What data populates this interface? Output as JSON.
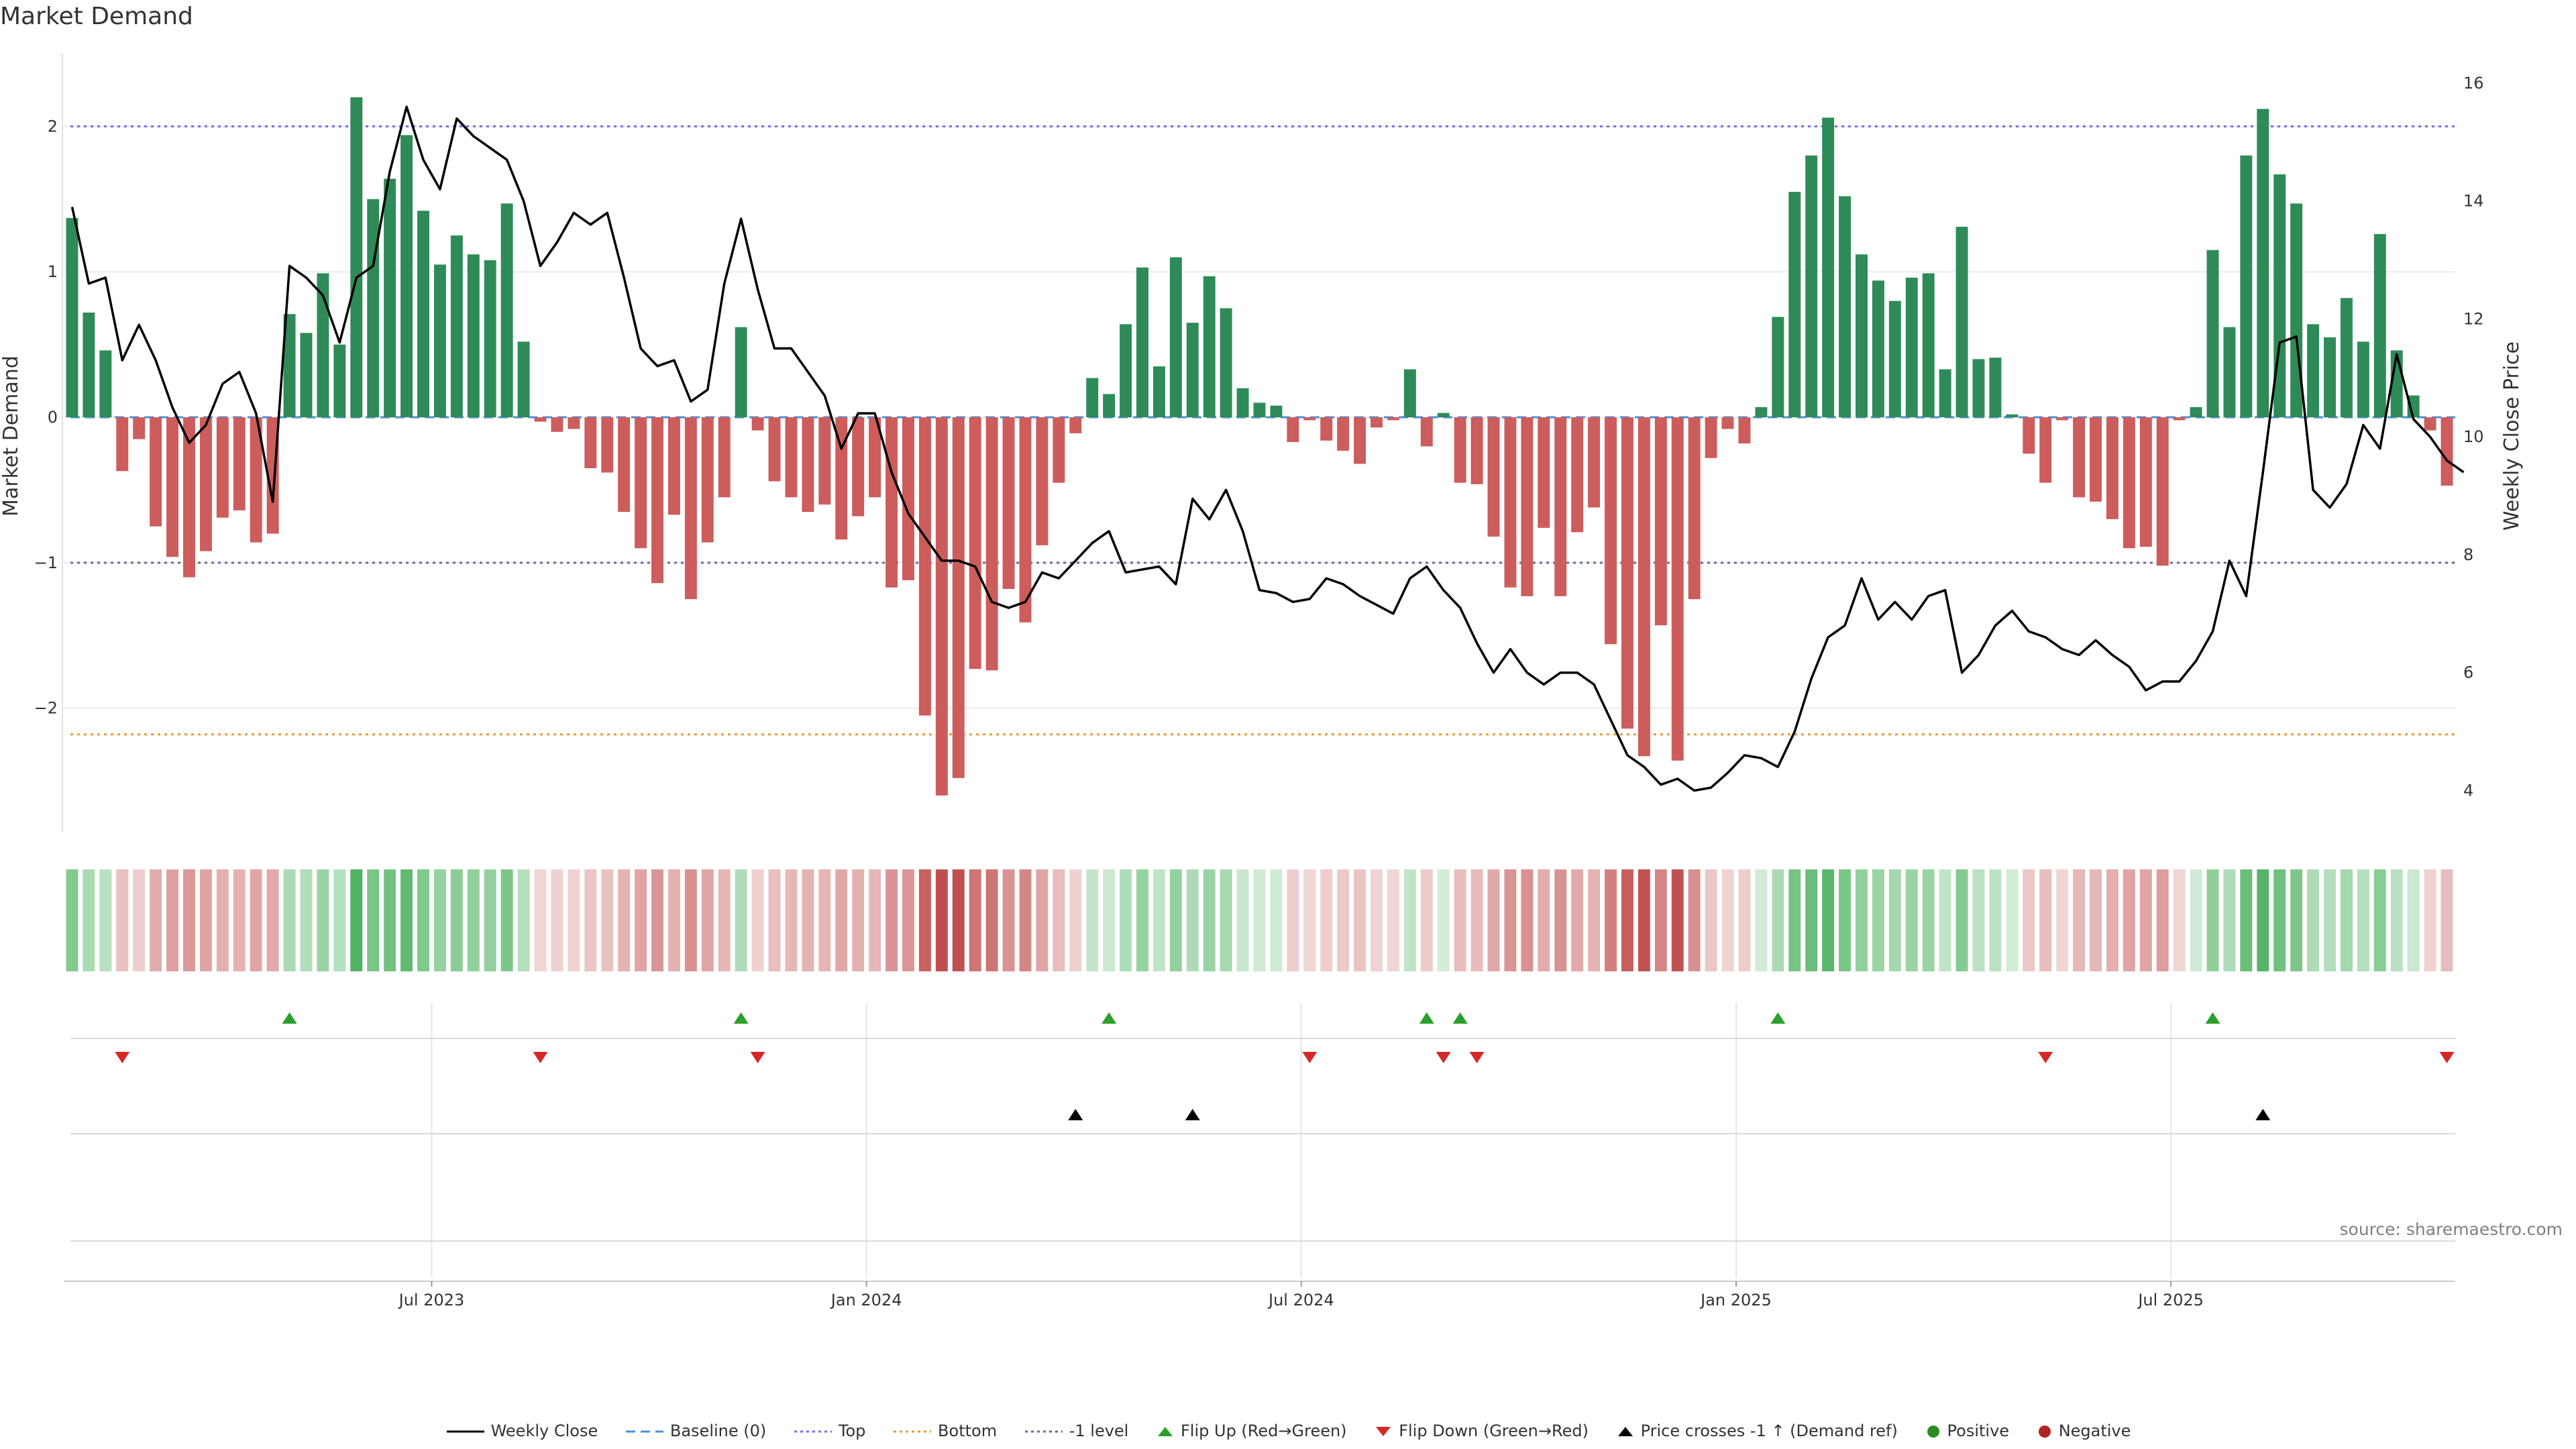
{
  "title": "Market Demand",
  "source": "source: sharemaestro.com",
  "colors": {
    "positive_bar": "#2e8b57",
    "negative_bar": "#cd5c5c",
    "price_line": "#000000",
    "baseline": "#4a90d9",
    "top_line": "#7b68ee",
    "bottom_line": "#e59a3a",
    "minus1_line": "#696992",
    "flip_up": "#2ca02c",
    "flip_down": "#d62728",
    "cross": "#000000",
    "positive_dot": "#2e8b22",
    "negative_dot": "#b22222"
  },
  "chart_data": {
    "type": "bar",
    "ylabel": "Market Demand",
    "y2label": "Weekly Close Price",
    "ylim": [
      -2.85,
      2.5
    ],
    "y2lim": [
      3.3,
      16.5
    ],
    "yticks": [
      "2",
      "1",
      "0",
      "−1",
      "−2"
    ],
    "y2ticks": [
      "16",
      "14",
      "12",
      "10",
      "8",
      "6",
      "4"
    ],
    "reference_lines": {
      "top": 2.0,
      "bottom": -2.18,
      "minus1": -1.0,
      "baseline": 0
    },
    "x_labels": [
      "Jul 2023",
      "Jan 2024",
      "Jul 2024",
      "Jan 2025",
      "Jul 2025"
    ],
    "x_label_weeks": [
      22,
      48,
      74,
      100,
      126
    ],
    "demand": [
      1.37,
      0.72,
      0.46,
      -0.37,
      -0.15,
      -0.75,
      -0.96,
      -1.1,
      -0.92,
      -0.69,
      -0.64,
      -0.86,
      -0.8,
      0.71,
      0.58,
      0.99,
      0.5,
      2.2,
      1.5,
      1.64,
      1.94,
      1.42,
      1.05,
      1.25,
      1.12,
      1.08,
      1.47,
      0.52,
      -0.03,
      -0.1,
      -0.08,
      -0.35,
      -0.38,
      -0.65,
      -0.9,
      -1.14,
      -0.67,
      -1.25,
      -0.86,
      -0.55,
      0.62,
      -0.09,
      -0.44,
      -0.55,
      -0.65,
      -0.6,
      -0.84,
      -0.68,
      -0.55,
      -1.17,
      -1.12,
      -2.05,
      -2.6,
      -2.48,
      -1.73,
      -1.74,
      -1.18,
      -1.41,
      -0.88,
      -0.45,
      -0.11,
      0.27,
      0.16,
      0.64,
      1.03,
      0.35,
      1.1,
      0.65,
      0.97,
      0.75,
      0.2,
      0.1,
      0.08,
      -0.17,
      -0.02,
      -0.16,
      -0.23,
      -0.32,
      -0.07,
      -0.02,
      0.33,
      -0.2,
      0.03,
      -0.45,
      -0.46,
      -0.82,
      -1.17,
      -1.23,
      -0.76,
      -1.23,
      -0.79,
      -0.62,
      -1.56,
      -2.14,
      -2.33,
      -1.43,
      -2.36,
      -1.25,
      -0.28,
      -0.08,
      -0.18,
      0.07,
      0.69,
      1.55,
      1.8,
      2.06,
      1.52,
      1.12,
      0.94,
      0.8,
      0.96,
      0.99,
      0.33,
      1.31,
      0.4,
      0.41,
      0.02,
      -0.25,
      -0.45,
      -0.02,
      -0.55,
      -0.58,
      -0.7,
      -0.9,
      -0.89,
      -1.02,
      -0.02,
      0.07,
      1.15,
      0.62,
      1.8,
      2.12,
      1.67,
      1.47,
      0.64,
      0.55,
      0.82,
      0.52,
      1.26,
      0.46,
      0.15,
      -0.09,
      -0.47
    ],
    "weekly_close": [
      13.9,
      12.6,
      12.7,
      11.3,
      11.9,
      11.3,
      10.5,
      9.9,
      10.2,
      10.9,
      11.1,
      10.4,
      8.9,
      12.9,
      12.7,
      12.4,
      11.6,
      12.7,
      12.9,
      14.5,
      15.6,
      14.7,
      14.2,
      15.4,
      15.1,
      14.9,
      14.7,
      14.0,
      12.9,
      13.3,
      13.8,
      13.6,
      13.8,
      12.7,
      11.5,
      11.2,
      11.3,
      10.6,
      10.8,
      12.6,
      13.7,
      12.5,
      11.5,
      11.5,
      11.1,
      10.7,
      9.8,
      10.4,
      10.4,
      9.4,
      8.7,
      8.3,
      7.9,
      7.9,
      7.8,
      7.2,
      7.1,
      7.2,
      7.7,
      7.6,
      7.9,
      8.2,
      8.4,
      7.7,
      7.75,
      7.8,
      7.5,
      8.95,
      8.6,
      9.1,
      8.4,
      7.4,
      7.35,
      7.2,
      7.25,
      7.6,
      7.5,
      7.3,
      7.15,
      7.0,
      7.6,
      7.8,
      7.4,
      7.1,
      6.5,
      6.0,
      6.4,
      6.0,
      5.8,
      6.0,
      6.0,
      5.8,
      5.2,
      4.6,
      4.4,
      4.1,
      4.2,
      4.0,
      4.05,
      4.3,
      4.6,
      4.55,
      4.4,
      5.0,
      5.9,
      6.6,
      6.8,
      7.6,
      6.9,
      7.2,
      6.9,
      7.3,
      7.4,
      6.0,
      6.3,
      6.8,
      7.05,
      6.7,
      6.6,
      6.4,
      6.3,
      6.55,
      6.3,
      6.1,
      5.7,
      5.85,
      5.85,
      6.2,
      6.7,
      7.9,
      7.3,
      9.4,
      11.6,
      11.7,
      9.1,
      8.8,
      9.2,
      10.2,
      9.8,
      11.4,
      10.3,
      10.0,
      9.6,
      9.4
    ],
    "flip_up_weeks": [
      13,
      40,
      62,
      81,
      83,
      102,
      128
    ],
    "flip_down_weeks": [
      3,
      28,
      41,
      74,
      82,
      84,
      118,
      142
    ],
    "price_cross_weeks": [
      60,
      67,
      131
    ]
  },
  "legend": {
    "weekly_close": "Weekly Close",
    "baseline": "Baseline (0)",
    "top": "Top",
    "bottom": "Bottom",
    "minus1": "-1 level",
    "flip_up": "Flip Up (Red→Green)",
    "flip_down": "Flip Down (Green→Red)",
    "price_cross": "Price crosses -1 ↑ (Demand ref)",
    "positive": "Positive",
    "negative": "Negative"
  }
}
